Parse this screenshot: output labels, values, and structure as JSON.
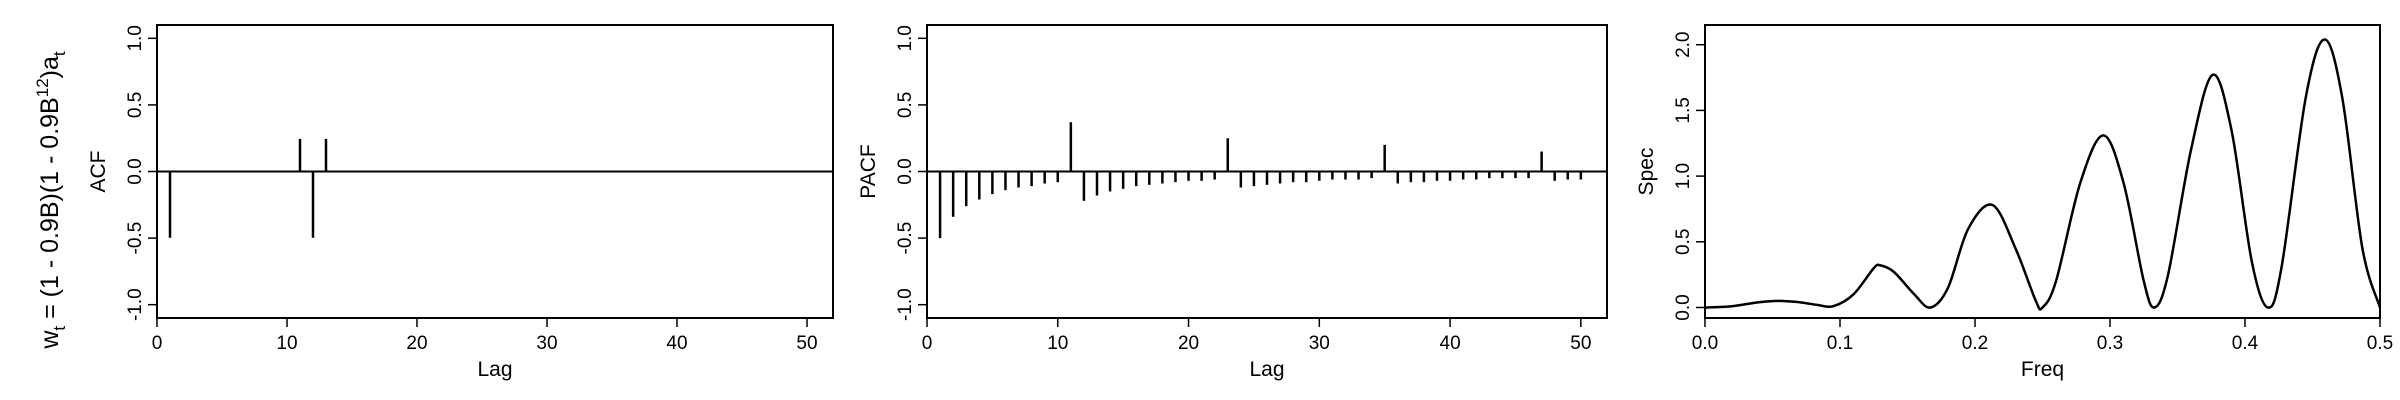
{
  "row_label": {
    "w_base": "w",
    "w_sub": "t",
    "mid": " = (1 - 0.9B)(1 - 0.9B",
    "exp": "12",
    "end": ")a",
    "a_sub": "t"
  },
  "chart_data": [
    {
      "type": "bar",
      "ylabel": "ACF",
      "xlabel": "Lag",
      "xlim": [
        0,
        52
      ],
      "ylim": [
        -1.1,
        1.1
      ],
      "xticks": [
        0,
        10,
        20,
        30,
        40,
        50
      ],
      "yticks": [
        -1.0,
        -0.5,
        0.0,
        0.5,
        1.0
      ],
      "ytick_labels": [
        "-1.0",
        "-0.5",
        "0.0",
        "0.5",
        "1.0"
      ],
      "grid": false,
      "x": [
        1,
        11,
        12,
        13
      ],
      "values": [
        -0.497,
        0.245,
        -0.497,
        0.245
      ]
    },
    {
      "type": "bar",
      "ylabel": "PACF",
      "xlabel": "Lag",
      "xlim": [
        0,
        52
      ],
      "ylim": [
        -1.1,
        1.1
      ],
      "xticks": [
        0,
        10,
        20,
        30,
        40,
        50
      ],
      "yticks": [
        -1.0,
        -0.5,
        0.0,
        0.5,
        1.0
      ],
      "ytick_labels": [
        "-1.0",
        "-0.5",
        "0.0",
        "0.5",
        "1.0"
      ],
      "grid": false,
      "x": [
        1,
        2,
        3,
        4,
        5,
        6,
        7,
        8,
        9,
        10,
        11,
        12,
        13,
        14,
        15,
        16,
        17,
        18,
        19,
        20,
        21,
        22,
        23,
        24,
        25,
        26,
        27,
        28,
        29,
        30,
        31,
        32,
        33,
        34,
        35,
        36,
        37,
        38,
        39,
        40,
        41,
        42,
        43,
        44,
        45,
        46,
        47,
        48,
        49,
        50
      ],
      "values": [
        -0.5,
        -0.34,
        -0.26,
        -0.21,
        -0.17,
        -0.14,
        -0.12,
        -0.11,
        -0.09,
        -0.08,
        0.37,
        -0.22,
        -0.18,
        -0.15,
        -0.13,
        -0.11,
        -0.1,
        -0.09,
        -0.08,
        -0.07,
        -0.07,
        -0.06,
        0.25,
        -0.12,
        -0.11,
        -0.1,
        -0.09,
        -0.08,
        -0.08,
        -0.07,
        -0.06,
        -0.06,
        -0.06,
        -0.05,
        0.2,
        -0.09,
        -0.08,
        -0.08,
        -0.07,
        -0.07,
        -0.06,
        -0.06,
        -0.05,
        -0.05,
        -0.05,
        -0.05,
        0.15,
        -0.07,
        -0.06,
        -0.06
      ]
    },
    {
      "type": "line",
      "ylabel": "Spec",
      "xlabel": "Freq",
      "xlim": [
        0.0,
        0.5
      ],
      "ylim": [
        -0.08,
        2.15
      ],
      "xticks": [
        0.0,
        0.1,
        0.2,
        0.3,
        0.4,
        0.5
      ],
      "xtick_labels": [
        "0.0",
        "0.1",
        "0.2",
        "0.3",
        "0.4",
        "0.5"
      ],
      "yticks": [
        0.0,
        0.5,
        1.0,
        1.5,
        2.0
      ],
      "ytick_labels": [
        "0.0",
        "0.5",
        "1.0",
        "1.5",
        "2.0"
      ],
      "grid": false,
      "series": [
        {
          "x": [
            0.0,
            0.02,
            0.04,
            0.055,
            0.07,
            0.083,
            0.095,
            0.11,
            0.125,
            0.13,
            0.14,
            0.155,
            0.167,
            0.18,
            0.195,
            0.213,
            0.23,
            0.245,
            0.25,
            0.26,
            0.278,
            0.295,
            0.31,
            0.325,
            0.333,
            0.343,
            0.36,
            0.376,
            0.39,
            0.405,
            0.417,
            0.427,
            0.445,
            0.459,
            0.472,
            0.487,
            0.5
          ],
          "y": [
            0.0,
            0.01,
            0.04,
            0.05,
            0.04,
            0.02,
            0.01,
            0.1,
            0.3,
            0.32,
            0.27,
            0.1,
            0.0,
            0.15,
            0.6,
            0.78,
            0.45,
            0.05,
            0.0,
            0.2,
            0.95,
            1.31,
            0.95,
            0.2,
            0.0,
            0.25,
            1.2,
            1.77,
            1.35,
            0.35,
            0.0,
            0.3,
            1.6,
            2.04,
            1.6,
            0.45,
            0.0
          ]
        }
      ]
    }
  ]
}
